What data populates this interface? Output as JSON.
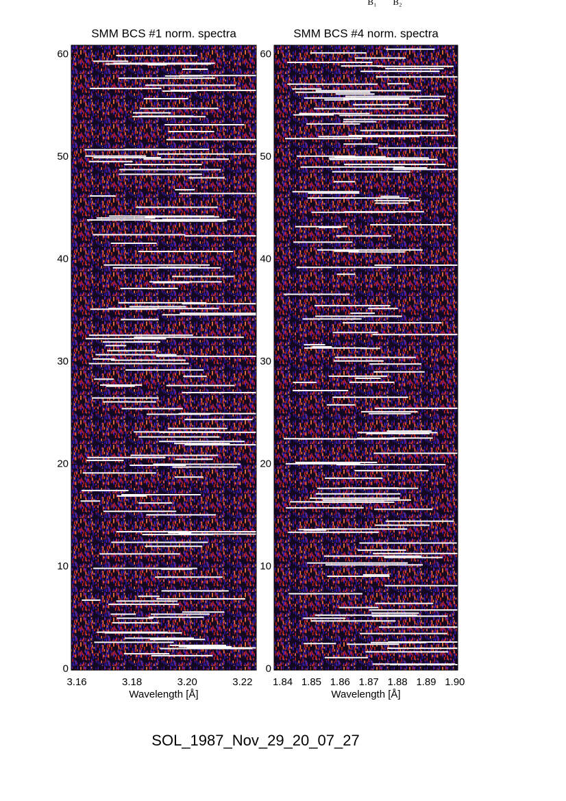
{
  "top_labels": [
    "B₁",
    "B₂"
  ],
  "footer": "SOL_1987_Nov_29_20_07_27",
  "chart_data": [
    {
      "type": "heatmap",
      "title": "SMM BCS #1 norm. spectra",
      "xlabel": "Wavelength [Å]",
      "xlim": [
        3.158,
        3.225
      ],
      "xticks": [
        3.16,
        3.18,
        {
          "value": 3.2,
          "label": "3.20"
        },
        3.22
      ],
      "ylim": [
        -0.1,
        60.9
      ],
      "yticks": [
        0,
        10,
        20,
        30,
        40,
        50,
        60
      ]
    },
    {
      "type": "heatmap",
      "title": "SMM BCS #4 norm. spectra",
      "xlabel": "Wavelength [Å]",
      "xlim": [
        1.837,
        1.901
      ],
      "xticks": [
        1.84,
        1.85,
        1.86,
        1.87,
        1.88,
        1.89,
        {
          "value": 1.9,
          "label": "1.90"
        }
      ],
      "ylim": [
        -0.1,
        60.9
      ],
      "yticks": [
        0,
        10,
        20,
        30,
        40,
        50,
        60
      ]
    }
  ]
}
